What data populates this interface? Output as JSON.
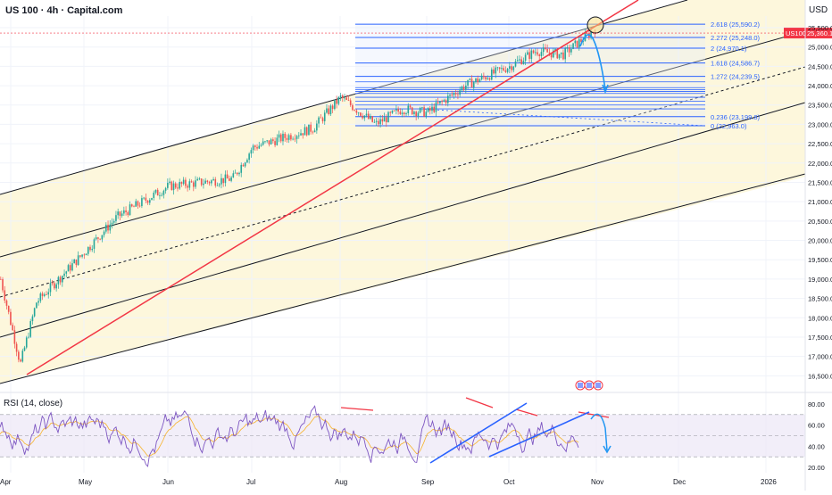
{
  "header": {
    "title": "US 100 · 4h · Capital.com",
    "currency": "USD"
  },
  "price_tag": {
    "symbol": "US100",
    "value": "25,360.1",
    "color": "#f23645"
  },
  "rsi": {
    "label": "RSI (14, close)"
  },
  "colors": {
    "channel_fill": "#fdf6d6",
    "rsi_fill": "#ede7f6",
    "rsi_line": "#7e57c2",
    "rsi_ma": "#f7b32b",
    "up_candle": "#26a69a",
    "down_candle": "#ef5350",
    "fib_line": "#2962ff",
    "trend_red": "#f23645",
    "trend_blue": "#2962ff",
    "projection": "#2196f3"
  },
  "chart_data": [
    {
      "type": "line",
      "title": "US 100 · 4h · Capital.com",
      "y_ticks": [
        "25,500.0",
        "25,000.0",
        "24,500.0",
        "24,000.0",
        "23,500.0",
        "23,000.0",
        "22,500.0",
        "22,000.0",
        "21,500.0",
        "21,000.0",
        "20,500.0",
        "20,000.0",
        "19,500.0",
        "19,000.0",
        "18,500.0",
        "18,000.0",
        "17,500.0",
        "17,000.0",
        "16,500.0"
      ],
      "x_ticks": [
        "Apr",
        "May",
        "Jun",
        "Jul",
        "Aug",
        "Sep",
        "Oct",
        "Nov",
        "Dec",
        "2026"
      ],
      "ylim": [
        16300,
        25800
      ],
      "series": [
        {
          "x": [
            "Apr",
            "Apr",
            "Apr",
            "May",
            "May",
            "Jun",
            "Jun",
            "Jul",
            "Jul",
            "Aug",
            "Aug",
            "Aug",
            "Sep",
            "Sep",
            "Oct",
            "Oct",
            "Oct",
            "Oct"
          ],
          "values": [
            19000,
            16800,
            18400,
            19700,
            20600,
            21400,
            21600,
            22400,
            22900,
            23700,
            23000,
            23400,
            23300,
            24000,
            24500,
            24900,
            24800,
            25500
          ]
        }
      ],
      "fib_levels": [
        {
          "label": "2.618 (25,590.2)",
          "value": 25590.2
        },
        {
          "label": "2.272 (25,248.0)",
          "value": 25248.0
        },
        {
          "label": "2 (24,970.1)",
          "value": 24970.1
        },
        {
          "label": "1.618 (24,586.7)",
          "value": 24586.7
        },
        {
          "label": "1.272 (24,239.5)",
          "value": 24239.5
        },
        {
          "label": "0.236 (23,199.8)",
          "value": 23199.8
        },
        {
          "label": "0 (22,963.0)",
          "value": 22963.0
        }
      ],
      "last_price": {
        "label": "US100",
        "value": 25360.1
      }
    },
    {
      "type": "line",
      "title": "RSI (14, close)",
      "y_ticks": [
        "80.00",
        "60.00",
        "40.00",
        "20.00"
      ],
      "ylim": [
        15,
        85
      ],
      "bands": [
        70,
        50,
        30
      ]
    }
  ]
}
